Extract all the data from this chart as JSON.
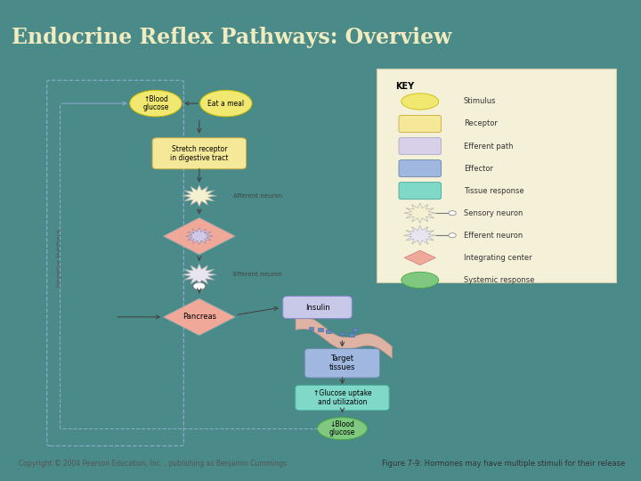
{
  "title": "Endocrine Reflex Pathways: Overview",
  "title_bg": "#3d7a78",
  "title_color": "#f0ecc0",
  "content_bg": "#ffffff",
  "outer_bg": "#4a8a88",
  "copyright": "Copyright © 2004 Pearson Education, Inc. , publishing as Benjamin Cummings",
  "figure_caption": "Figure 7-9: Hormones may have multiple stimuli for their release",
  "stim1_color": "#f0e870",
  "stim2_color": "#f0e870",
  "receptor_color": "#f5e898",
  "sensory_color": "#f5f0d0",
  "efferent_color": "#d8d0e8",
  "cns_diamond_color": "#f0a898",
  "pancreas_diamond_color": "#f0a898",
  "insulin_color": "#c8c8e8",
  "target_color": "#a0b8e0",
  "glucose_uptake_color": "#80d8c8",
  "result_color": "#80c880",
  "wave_color": "#f0b8a8",
  "feedback_line_color": "#88aacc",
  "arrow_color": "#444444",
  "key_bg": "#f5f0d8",
  "key_border": "#ccccaa"
}
